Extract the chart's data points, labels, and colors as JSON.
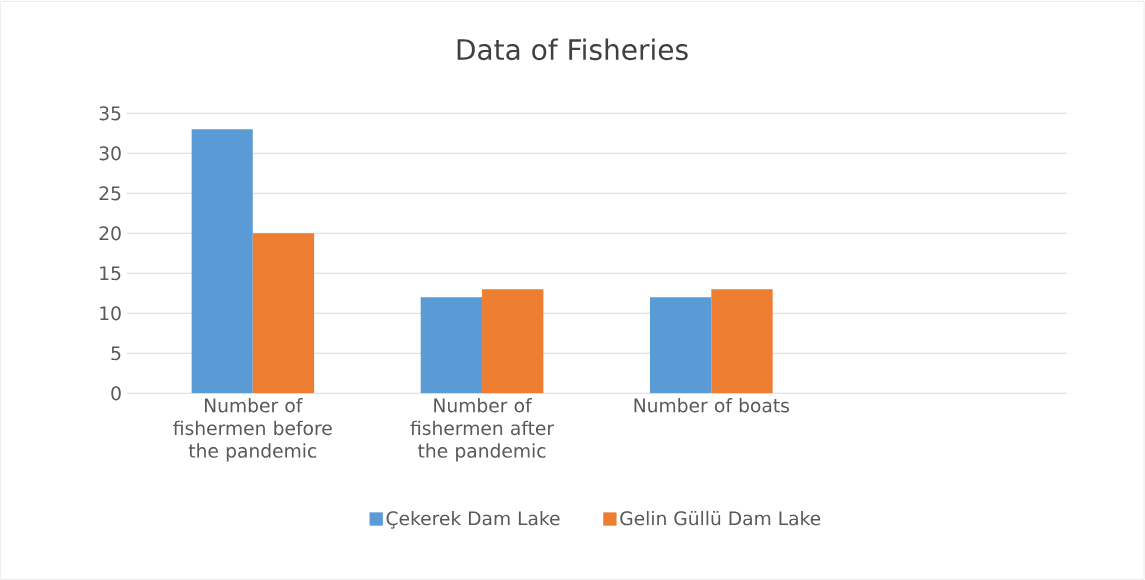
{
  "chart_data": {
    "type": "bar",
    "title": "Data of Fisheries",
    "categories": [
      "Number of fishermen before the pandemic",
      "Number of fishermen after the pandemic",
      "Number of boats",
      null
    ],
    "series": [
      {
        "name": "Çekerek Dam Lake",
        "color": "#5b9bd5",
        "values": [
          33,
          12,
          12,
          null
        ]
      },
      {
        "name": "Gelin Güllü Dam Lake",
        "color": "#ed7d31",
        "values": [
          20,
          13,
          13,
          null
        ]
      }
    ],
    "ylim": [
      0,
      35
    ],
    "yticks": [
      0,
      5,
      10,
      15,
      20,
      25,
      30,
      35
    ],
    "grid": "y",
    "legend": "bottom"
  }
}
